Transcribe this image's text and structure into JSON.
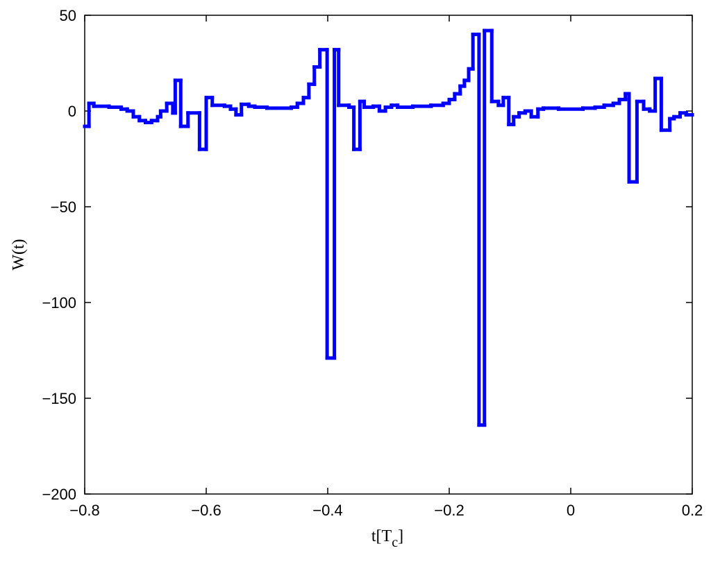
{
  "chart_data": {
    "type": "step",
    "xlabel": [
      "t[T",
      "c",
      "]"
    ],
    "ylabel": "W(t)",
    "color": "#0000ff",
    "xlim": [
      -0.8,
      0.2
    ],
    "ylim": [
      -200,
      50
    ],
    "xticks": [
      {
        "value": -0.8,
        "label": "−0.8"
      },
      {
        "value": -0.6,
        "label": "−0.6"
      },
      {
        "value": -0.4,
        "label": "−0.4"
      },
      {
        "value": -0.2,
        "label": "−0.2"
      },
      0,
      0.2
    ],
    "yticks": [
      {
        "value": -200,
        "label": "−200"
      },
      {
        "value": -150,
        "label": "−150"
      },
      {
        "value": -100,
        "label": "−100"
      },
      {
        "value": -50,
        "label": "−50"
      },
      0,
      50
    ],
    "x": [
      -0.8,
      -0.793,
      -0.785,
      -0.76,
      -0.74,
      -0.73,
      -0.72,
      -0.71,
      -0.7,
      -0.69,
      -0.68,
      -0.675,
      -0.665,
      -0.655,
      -0.651,
      -0.642,
      -0.63,
      -0.611,
      -0.6,
      -0.59,
      -0.57,
      -0.56,
      -0.551,
      -0.542,
      -0.53,
      -0.52,
      -0.5,
      -0.46,
      -0.45,
      -0.44,
      -0.431,
      -0.422,
      -0.413,
      -0.401,
      -0.389,
      -0.382,
      -0.365,
      -0.357,
      -0.347,
      -0.34,
      -0.325,
      -0.315,
      -0.305,
      -0.295,
      -0.285,
      -0.26,
      -0.23,
      -0.21,
      -0.2,
      -0.191,
      -0.182,
      -0.175,
      -0.168,
      -0.161,
      -0.151,
      -0.142,
      -0.13,
      -0.119,
      -0.111,
      -0.102,
      -0.094,
      -0.085,
      -0.075,
      -0.065,
      -0.054,
      -0.045,
      -0.02,
      0.02,
      0.04,
      0.055,
      0.07,
      0.08,
      0.09,
      0.096,
      0.109,
      0.12,
      0.13,
      0.139,
      0.149,
      0.163,
      0.17,
      0.18,
      0.19
    ],
    "values": [
      -8,
      4,
      2.5,
      2,
      1,
      0,
      -3,
      -5,
      -6,
      -5,
      -3,
      0,
      4,
      -1,
      16,
      -8,
      -1,
      -20,
      7,
      3,
      2.5,
      1,
      -2,
      3.5,
      2.5,
      2,
      1.5,
      2,
      4,
      7,
      14,
      23,
      32,
      -129,
      32,
      3,
      2,
      -20,
      5,
      2,
      2.5,
      0,
      2,
      3,
      2,
      2.5,
      3,
      4,
      6,
      9,
      13,
      16,
      22,
      40,
      -164,
      42,
      5,
      3,
      7,
      -7,
      -3,
      -1,
      0,
      -3,
      1,
      1.5,
      1,
      1.5,
      2,
      3,
      4,
      6,
      9,
      -37,
      5,
      1,
      0,
      17,
      -10,
      -4,
      -3,
      -1,
      -2
    ]
  }
}
